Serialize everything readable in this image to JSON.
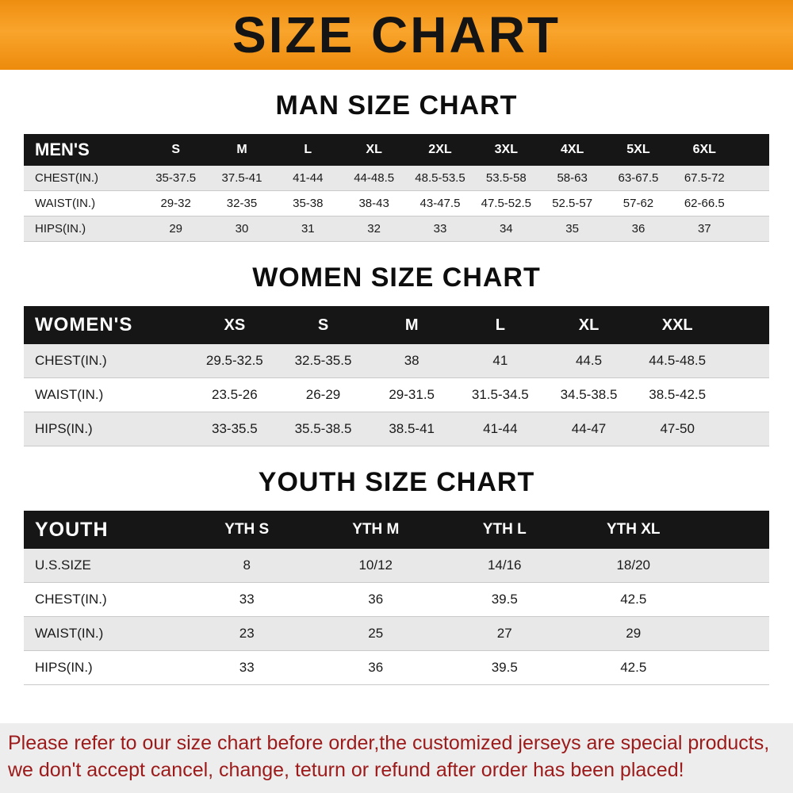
{
  "colors": {
    "banner_orange": "#f7941d",
    "header_black": "#161616",
    "row_gray": "#e8e8e8",
    "footer_red": "#9c1a1a"
  },
  "banner": {
    "title": "SIZE CHART"
  },
  "men": {
    "heading": "MAN SIZE CHART",
    "label": "MEN'S",
    "columns": [
      "S",
      "M",
      "L",
      "XL",
      "2XL",
      "3XL",
      "4XL",
      "5XL",
      "6XL"
    ],
    "rows": [
      {
        "label": "CHEST(IN.)",
        "values": [
          "35-37.5",
          "37.5-41",
          "41-44",
          "44-48.5",
          "48.5-53.5",
          "53.5-58",
          "58-63",
          "63-67.5",
          "67.5-72"
        ]
      },
      {
        "label": "WAIST(IN.)",
        "values": [
          "29-32",
          "32-35",
          "35-38",
          "38-43",
          "43-47.5",
          "47.5-52.5",
          "52.5-57",
          "57-62",
          "62-66.5"
        ]
      },
      {
        "label": "HIPS(IN.)",
        "values": [
          "29",
          "30",
          "31",
          "32",
          "33",
          "34",
          "35",
          "36",
          "37"
        ]
      }
    ]
  },
  "women": {
    "heading": "WOMEN SIZE CHART",
    "label": "WOMEN'S",
    "columns": [
      "XS",
      "S",
      "M",
      "L",
      "XL",
      "XXL"
    ],
    "rows": [
      {
        "label": "CHEST(IN.)",
        "values": [
          "29.5-32.5",
          "32.5-35.5",
          "38",
          "41",
          "44.5",
          "44.5-48.5"
        ]
      },
      {
        "label": "WAIST(IN.)",
        "values": [
          "23.5-26",
          "26-29",
          "29-31.5",
          "31.5-34.5",
          "34.5-38.5",
          "38.5-42.5"
        ]
      },
      {
        "label": "HIPS(IN.)",
        "values": [
          "33-35.5",
          "35.5-38.5",
          "38.5-41",
          "41-44",
          "44-47",
          "47-50"
        ]
      }
    ]
  },
  "youth": {
    "heading": "YOUTH SIZE CHART",
    "label": "YOUTH",
    "columns": [
      "YTH S",
      "YTH M",
      "YTH L",
      "YTH XL"
    ],
    "rows": [
      {
        "label": "U.S.SIZE",
        "values": [
          "8",
          "10/12",
          "14/16",
          "18/20"
        ]
      },
      {
        "label": "CHEST(IN.)",
        "values": [
          "33",
          "36",
          "39.5",
          "42.5"
        ]
      },
      {
        "label": "WAIST(IN.)",
        "values": [
          "23",
          "25",
          "27",
          "29"
        ]
      },
      {
        "label": "HIPS(IN.)",
        "values": [
          "33",
          "36",
          "39.5",
          "42.5"
        ]
      }
    ]
  },
  "footer": {
    "line1": "Please refer to our size chart before order,the customized jerseys are special products,",
    "line2": "we don't accept cancel, change, teturn or refund after order has been placed!"
  }
}
